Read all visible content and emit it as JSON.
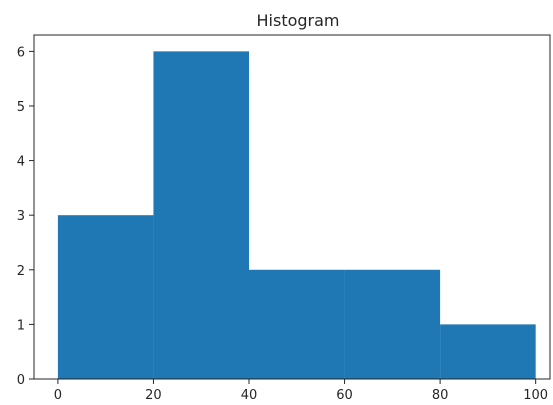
{
  "chart_data": {
    "type": "bar",
    "title": "Histogram",
    "xlabel": "",
    "ylabel": "",
    "bins": [
      {
        "start": 0,
        "end": 20,
        "count": 3
      },
      {
        "start": 20,
        "end": 40,
        "count": 6
      },
      {
        "start": 40,
        "end": 60,
        "count": 2
      },
      {
        "start": 60,
        "end": 80,
        "count": 2
      },
      {
        "start": 80,
        "end": 100,
        "count": 1
      }
    ],
    "xlim": [
      -5,
      103
    ],
    "ylim": [
      0,
      6.3
    ],
    "xticks": [
      0,
      20,
      40,
      60,
      80,
      100
    ],
    "yticks": [
      0,
      1,
      2,
      3,
      4,
      5,
      6
    ],
    "bar_color": "#1f77b4",
    "grid": false,
    "legend": "none"
  }
}
